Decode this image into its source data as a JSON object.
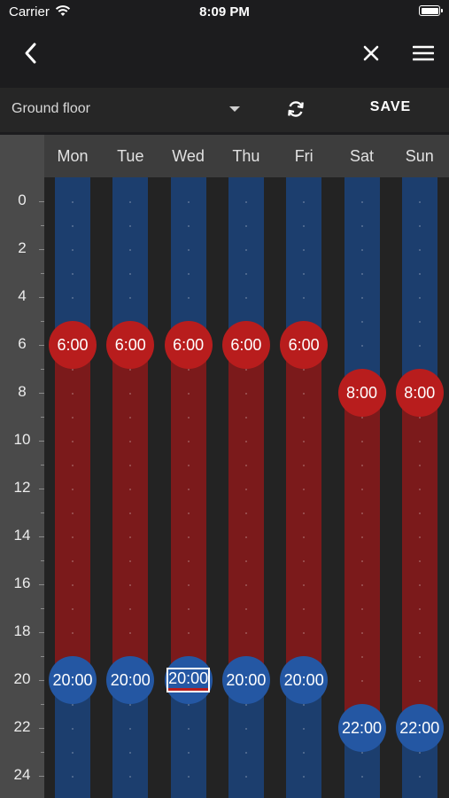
{
  "status_bar": {
    "carrier": "Carrier",
    "time": "8:09 PM"
  },
  "nav": {
    "back_icon": "chevron-left-icon",
    "close_icon": "close-icon",
    "menu_icon": "hamburger-menu-icon"
  },
  "toolbar": {
    "floor": "Ground floor",
    "refresh_icon": "refresh-icon",
    "save_label": "SAVE"
  },
  "colors": {
    "comfort": "#b81d1d",
    "eco": "#2457a3",
    "comfort_track": "#7b1a1b",
    "eco_track": "#1c3e6e"
  },
  "hours": [
    "0",
    "2",
    "4",
    "6",
    "8",
    "10",
    "12",
    "14",
    "16",
    "18",
    "20",
    "22",
    "24"
  ],
  "days": [
    {
      "label": "Mon",
      "on": "6:00",
      "off": "20:00",
      "on_hour": 6,
      "off_hour": 20,
      "selected": ""
    },
    {
      "label": "Tue",
      "on": "6:00",
      "off": "20:00",
      "on_hour": 6,
      "off_hour": 20,
      "selected": ""
    },
    {
      "label": "Wed",
      "on": "6:00",
      "off": "20:00",
      "on_hour": 6,
      "off_hour": 20,
      "selected": "off"
    },
    {
      "label": "Thu",
      "on": "6:00",
      "off": "20:00",
      "on_hour": 6,
      "off_hour": 20,
      "selected": ""
    },
    {
      "label": "Fri",
      "on": "6:00",
      "off": "20:00",
      "on_hour": 6,
      "off_hour": 20,
      "selected": ""
    },
    {
      "label": "Sat",
      "on": "8:00",
      "off": "22:00",
      "on_hour": 8,
      "off_hour": 22,
      "selected": ""
    },
    {
      "label": "Sun",
      "on": "8:00",
      "off": "22:00",
      "on_hour": 8,
      "off_hour": 22,
      "selected": ""
    }
  ]
}
